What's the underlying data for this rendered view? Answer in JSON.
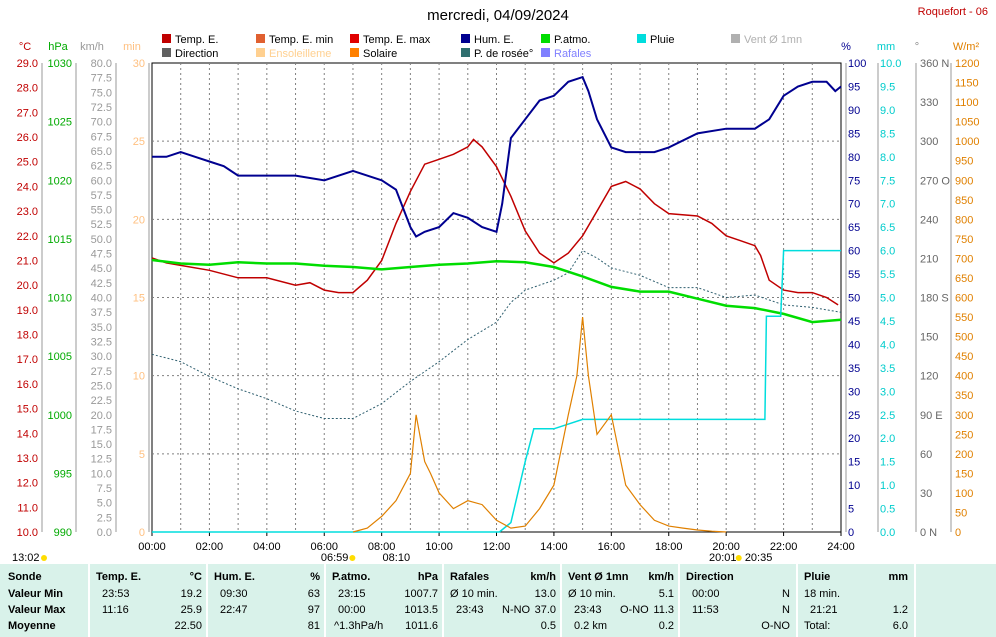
{
  "header": {
    "title": "mercredi, 04/09/2024",
    "station": "Roquefort - 06"
  },
  "colors": {
    "temp": "#c00000",
    "hum": "#000090",
    "patm": "#00dd00",
    "rain": "#00dddd",
    "solar": "#e08000",
    "dew": "#2f5f6f",
    "gust": "#8080ff",
    "grid": "#808080"
  },
  "legend": [
    {
      "label": "Temp. E.",
      "color": "#c00000"
    },
    {
      "label": "Temp. E. min",
      "color": "#e06030"
    },
    {
      "label": "Temp. E. max",
      "color": "#e00000"
    },
    {
      "label": "Hum. E.",
      "color": "#000090"
    },
    {
      "label": "P.atmo.",
      "color": "#00dd00"
    },
    {
      "label": "Pluie",
      "color": "#00dddd"
    },
    {
      "label": "Vent Ø 1mn",
      "color": "#b0b0b0"
    },
    {
      "label": "Direction",
      "color": "#606060"
    },
    {
      "label": "Ensoleilleme",
      "color": "#ffd090"
    },
    {
      "label": "Solaire",
      "color": "#ff8000"
    },
    {
      "label": "P. de rosée°",
      "color": "#2f6f6f"
    },
    {
      "label": "Rafales",
      "color": "#8080ff"
    }
  ],
  "axes": {
    "units": [
      "°C",
      "hPa",
      "km/h",
      "min",
      "%",
      "mm",
      "°",
      "W/m²"
    ],
    "temp_ticks": [
      "29.0",
      "28.0",
      "27.0",
      "26.0",
      "25.0",
      "24.0",
      "23.0",
      "22.0",
      "21.0",
      "20.0",
      "19.0",
      "18.0",
      "17.0",
      "16.0",
      "15.0",
      "14.0",
      "13.0",
      "12.0",
      "11.0",
      "10.0"
    ],
    "patm_ticks": [
      "1030",
      "1025",
      "1020",
      "1015",
      "1010",
      "1005",
      "1000",
      "995",
      "990"
    ],
    "wind_ticks": [
      "80.0",
      "77.5",
      "75.0",
      "72.5",
      "70.0",
      "67.5",
      "65.0",
      "62.5",
      "60.0",
      "57.5",
      "55.0",
      "52.5",
      "50.0",
      "47.5",
      "45.0",
      "42.5",
      "40.0",
      "37.5",
      "35.0",
      "32.5",
      "30.0",
      "27.5",
      "25.0",
      "22.5",
      "20.0",
      "17.5",
      "15.0",
      "12.5",
      "10.0",
      "7.5",
      "5.0",
      "2.5",
      "0.0"
    ],
    "min_ticks": [
      "30",
      "25",
      "20",
      "15",
      "10",
      "5",
      "0"
    ],
    "hum_ticks": [
      "100",
      "95",
      "90",
      "85",
      "80",
      "75",
      "70",
      "65",
      "60",
      "55",
      "50",
      "45",
      "40",
      "35",
      "30",
      "25",
      "20",
      "15",
      "10",
      "5",
      "0"
    ],
    "rain_ticks": [
      "10.0",
      "9.5",
      "9.0",
      "8.5",
      "8.0",
      "7.5",
      "7.0",
      "6.5",
      "6.0",
      "5.5",
      "5.0",
      "4.5",
      "4.0",
      "3.5",
      "3.0",
      "2.5",
      "2.0",
      "1.5",
      "1.0",
      "0.5",
      "0.0"
    ],
    "dir_ticks": [
      "360 N",
      "330",
      "300",
      "270 O",
      "240",
      "210",
      "180 S",
      "150",
      "120",
      "90 E",
      "60",
      "30",
      "0 N"
    ],
    "solar_ticks": [
      "1200",
      "1150",
      "1100",
      "1050",
      "1000",
      "950",
      "900",
      "850",
      "800",
      "750",
      "700",
      "650",
      "600",
      "550",
      "500",
      "450",
      "400",
      "350",
      "300",
      "250",
      "200",
      "150",
      "100",
      "50",
      "0"
    ],
    "x_ticks": [
      "00:00",
      "02:00",
      "04:00",
      "06:00",
      "08:00",
      "10:00",
      "12:00",
      "14:00",
      "16:00",
      "18:00",
      "20:00",
      "22:00",
      "24:00"
    ]
  },
  "sun": {
    "sunrise_label": "06:59",
    "transit_label": "13:02",
    "sunset_label": "20:01",
    "twilight_morning": "08:10",
    "twilight_evening": "20:35"
  },
  "chart_data": {
    "type": "line",
    "x_unit": "hours",
    "temp_range": [
      10,
      29
    ],
    "hum_range": [
      0,
      100
    ],
    "patm_range": [
      990,
      1030
    ],
    "rain_range": [
      0,
      10
    ],
    "solar_range": [
      0,
      1200
    ],
    "wind_range": [
      0,
      80
    ],
    "series": [
      {
        "name": "Temp. E.",
        "axis": "temp",
        "x": [
          0,
          0.5,
          1,
          2,
          3,
          4,
          5,
          5.5,
          6,
          6.5,
          7,
          7.5,
          8,
          8.5,
          9,
          9.5,
          10,
          10.5,
          11,
          11.2,
          11.5,
          12,
          12.5,
          13,
          13.5,
          14,
          14.5,
          15,
          15.5,
          16,
          16.5,
          17,
          17.5,
          18,
          19,
          19.5,
          20,
          20.5,
          21,
          21.2,
          21.5,
          22,
          22.5,
          23,
          23.5,
          23.9
        ],
        "values": [
          21.1,
          20.9,
          20.8,
          20.6,
          20.3,
          20.3,
          20.0,
          20.1,
          19.8,
          19.7,
          19.7,
          20.2,
          21.0,
          22.5,
          23.8,
          24.9,
          25.1,
          25.3,
          25.6,
          25.9,
          25.6,
          24.8,
          23.6,
          22.2,
          21.3,
          20.9,
          21.3,
          22.0,
          23.0,
          24.0,
          24.2,
          23.9,
          23.3,
          22.9,
          22.8,
          22.5,
          22.0,
          21.8,
          21.6,
          21.2,
          20.2,
          19.8,
          19.7,
          19.7,
          19.5,
          19.2
        ]
      },
      {
        "name": "Hum. E.",
        "axis": "hum",
        "x": [
          0,
          0.5,
          1,
          1.5,
          2,
          2.5,
          3,
          4,
          5,
          6,
          7,
          8,
          8.5,
          9,
          9.2,
          9.5,
          10,
          10.5,
          11,
          11.5,
          12,
          12.2,
          12.5,
          13,
          13.5,
          14,
          14.5,
          15,
          15.2,
          15.5,
          16,
          16.5,
          17,
          17.5,
          18,
          19,
          20,
          21,
          21.5,
          22,
          22.5,
          23,
          23.5,
          23.8,
          24
        ],
        "values": [
          80,
          80,
          81,
          80,
          79,
          78,
          76,
          76,
          76,
          75,
          77,
          75,
          73,
          65,
          63,
          64,
          65,
          68,
          67,
          65,
          64,
          70,
          84,
          88,
          92,
          93,
          96,
          97,
          94,
          88,
          82,
          81,
          81,
          81,
          82,
          85,
          86,
          86,
          88,
          93,
          95,
          96,
          96,
          94,
          95
        ]
      },
      {
        "name": "P.atmo.",
        "axis": "patm",
        "x": [
          0,
          1,
          2,
          3,
          4,
          5,
          6,
          7,
          8,
          9,
          10,
          11,
          12,
          13,
          14,
          15,
          16,
          17,
          18,
          19,
          20,
          21,
          22,
          23,
          24
        ],
        "values": [
          1013.2,
          1012.9,
          1012.8,
          1013.0,
          1012.9,
          1012.9,
          1012.7,
          1012.6,
          1012.4,
          1012.6,
          1012.8,
          1012.9,
          1013.1,
          1013.0,
          1012.6,
          1011.8,
          1010.9,
          1010.5,
          1010.5,
          1009.9,
          1009.3,
          1009.1,
          1008.6,
          1007.9,
          1008.1
        ]
      },
      {
        "name": "P. de rosée°",
        "axis": "temp",
        "x": [
          0,
          1,
          2,
          3,
          4,
          5,
          6,
          7,
          8,
          9,
          10,
          11,
          12,
          12.5,
          13,
          14,
          14.5,
          15,
          15.5,
          16,
          17,
          18,
          19,
          20,
          21,
          22,
          23,
          24
        ],
        "values": [
          17.2,
          16.9,
          16.3,
          15.8,
          15.4,
          14.9,
          14.6,
          14.6,
          15.2,
          16.1,
          16.9,
          17.8,
          18.5,
          19.3,
          19.8,
          20.2,
          20.5,
          21.4,
          21.1,
          20.7,
          20.4,
          19.9,
          19.9,
          19.5,
          19.6,
          19.2,
          19.1,
          18.9
        ]
      },
      {
        "name": "Pluie",
        "axis": "rain",
        "x": [
          0,
          12.1,
          12.5,
          13.0,
          13.3,
          14.0,
          15.0,
          20.0,
          21.0,
          21.35,
          21.4,
          21.9,
          22.0,
          24.0
        ],
        "values": [
          0,
          0,
          0.2,
          1.5,
          2.2,
          2.2,
          2.4,
          2.4,
          2.4,
          2.4,
          4.6,
          4.6,
          6.0,
          6.0
        ]
      },
      {
        "name": "Solaire",
        "axis": "solar",
        "x": [
          7,
          7.5,
          8,
          8.5,
          9,
          9.2,
          9.5,
          9.7,
          10,
          10.5,
          11,
          11.5,
          12,
          12.5,
          13,
          13.5,
          14,
          14.5,
          14.8,
          15,
          15.2,
          15.5,
          16,
          16.5,
          17,
          17.5,
          18,
          18.5,
          19,
          19.5,
          20
        ],
        "values": [
          0,
          10,
          40,
          80,
          150,
          300,
          180,
          150,
          100,
          60,
          80,
          70,
          30,
          10,
          15,
          60,
          120,
          300,
          400,
          550,
          400,
          250,
          300,
          120,
          70,
          30,
          15,
          10,
          5,
          2,
          0
        ]
      }
    ]
  },
  "stats": {
    "headers": {
      "sonde": "Sonde",
      "temp": "Temp. E.",
      "temp_u": "°C",
      "hum": "Hum. E.",
      "hum_u": "%",
      "patm": "P.atmo.",
      "patm_u": "hPa",
      "gust": "Rafales",
      "gust_u": "km/h",
      "wind": "Vent Ø 1mn",
      "wind_u": "km/h",
      "dir": "Direction",
      "rain": "Pluie",
      "rain_u": "mm"
    },
    "rows": {
      "min_label": "Valeur Min",
      "max_label": "Valeur Max",
      "avg_label": "Moyenne"
    },
    "temp": {
      "min_time": "23:53",
      "min": "19.2",
      "max_time": "11:16",
      "max": "25.9",
      "avg": "22.50"
    },
    "hum": {
      "min_time": "09:30",
      "min": "63",
      "max_time": "22:47",
      "max": "97",
      "avg": "81"
    },
    "patm": {
      "min_time": "23:15",
      "min": "1007.7",
      "max_time": "00:00",
      "max": "1013.5",
      "trend": "^1.3hPa/h",
      "avg": "1011.6"
    },
    "gust": {
      "r1_label": "Ø 10 min.",
      "r1": "13.0",
      "r2_time": "23:43",
      "r2_dir": "N-NO",
      "r2": "37.0",
      "avg": "0.5"
    },
    "wind": {
      "r1_label": "Ø 10 min.",
      "r1": "5.1",
      "r2_time": "23:43",
      "r2_dir": "O-NO",
      "r2": "11.3",
      "r3_label": "0.2 km",
      "avg": "0.2"
    },
    "dir": {
      "r1_time": "00:00",
      "r1": "N",
      "r2_time": "11:53",
      "r2": "N",
      "avg": "O-NO"
    },
    "rain": {
      "r1_label": "18 min.",
      "r2_time": "21:21",
      "r2": "1.2",
      "r3_label": "Total:",
      "r3": "6.0"
    }
  }
}
